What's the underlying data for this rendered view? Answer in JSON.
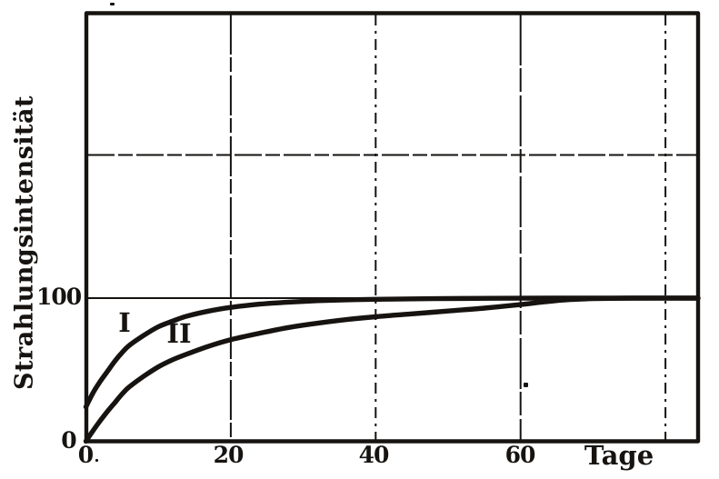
{
  "figure": {
    "kind": "scanned scientific figure (old German physics text)",
    "paper_color": "#ffffff",
    "ink_color": "#161310"
  },
  "axes": {
    "y_title": "Strahlungsintensität",
    "x_title": "Tage",
    "y_tick_labels": [
      "100",
      "0"
    ],
    "x_tick_labels": [
      "0",
      "20",
      "40",
      "60"
    ]
  },
  "chart_data": {
    "type": "line",
    "title": "",
    "xlabel": "Tage",
    "ylabel": "Strahlungsintensität",
    "xlim": [
      0,
      84.5
    ],
    "ylim": [
      0,
      300
    ],
    "x_ticks_labeled": [
      0,
      20,
      40,
      60
    ],
    "y_ticks_labeled": [
      0,
      100
    ],
    "gridlines_x": [
      20,
      40,
      60,
      80
    ],
    "gridlines_y": [
      100,
      200
    ],
    "grid": true,
    "legend": "inline curve labels",
    "series": [
      {
        "name": "I",
        "x": [
          0,
          1,
          2,
          3,
          4,
          5,
          6,
          8,
          10,
          12,
          14,
          17,
          20,
          24,
          28,
          32,
          36,
          40,
          48,
          56,
          64,
          72,
          84.5
        ],
        "y": [
          24,
          34,
          42,
          49,
          56,
          62,
          67,
          74,
          80,
          84,
          87.5,
          91,
          93.5,
          95.8,
          97.2,
          98.2,
          98.8,
          99.2,
          99.6,
          99.9,
          100,
          100,
          100
        ]
      },
      {
        "name": "II",
        "x": [
          0,
          1,
          2,
          3,
          4,
          5,
          6,
          8,
          10,
          12,
          14,
          17,
          20,
          24,
          28,
          32,
          36,
          40,
          45,
          50,
          55,
          60,
          63,
          66,
          70,
          75,
          84.5
        ],
        "y": [
          0,
          7.5,
          14.5,
          21,
          27,
          33,
          38,
          45.5,
          52,
          57,
          61,
          66.5,
          71,
          75.5,
          79.5,
          82.5,
          85,
          87,
          89,
          91,
          93,
          95.5,
          97.3,
          98.7,
          99.6,
          100,
          100
        ]
      }
    ],
    "asymptote_value": 100
  }
}
